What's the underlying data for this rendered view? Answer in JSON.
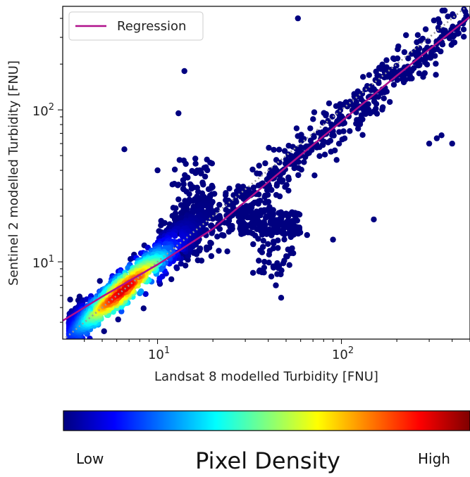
{
  "chart_data": {
    "type": "scatter",
    "title": "",
    "xlabel": "Landsat 8 modelled Turbidity [FNU]",
    "ylabel": "Sentinel 2 modelled Turbidity [FNU]",
    "xscale": "log",
    "yscale": "log",
    "xlim": [
      3.05,
      500
    ],
    "ylim": [
      3.1,
      480
    ],
    "x_ticks": [
      {
        "value": 10,
        "base": "10",
        "exp": "1"
      },
      {
        "value": 100,
        "base": "10",
        "exp": "2"
      }
    ],
    "y_ticks": [
      {
        "value": 10,
        "base": "10",
        "exp": "1"
      },
      {
        "value": 100,
        "base": "10",
        "exp": "2"
      }
    ],
    "grid": false,
    "legend": {
      "position": "top-left",
      "entries": [
        {
          "label": "Regression",
          "color": "#b0108c"
        }
      ]
    },
    "regression": {
      "name": "Regression",
      "color": "#b0108c",
      "points": [
        [
          3.05,
          4.1
        ],
        [
          5,
          5.9
        ],
        [
          10,
          9.6
        ],
        [
          20,
          16.5
        ],
        [
          50,
          42
        ],
        [
          100,
          84
        ],
        [
          200,
          168
        ],
        [
          500,
          410
        ]
      ]
    },
    "identity_line": {
      "style": "dotted",
      "color": "#999999"
    },
    "clusters": [
      {
        "name": "dense core",
        "x_range": [
          3.2,
          20
        ],
        "y_range": [
          3.4,
          22
        ],
        "density": "high"
      },
      {
        "name": "upper branch",
        "x_range": [
          20,
          480
        ],
        "y_range": [
          20,
          470
        ],
        "density": "low"
      },
      {
        "name": "mid horizontal band",
        "x_range": [
          28,
          60
        ],
        "y_range": [
          14,
          22
        ],
        "density": "low"
      },
      {
        "name": "upper vertical band",
        "x_range": [
          16,
          20
        ],
        "y_range": [
          25,
          50
        ],
        "density": "low"
      }
    ],
    "outliers": [
      [
        14,
        180
      ],
      [
        58,
        400
      ],
      [
        6.6,
        55
      ],
      [
        13,
        95
      ],
      [
        10,
        40
      ],
      [
        47,
        5.8
      ],
      [
        44,
        7
      ],
      [
        150,
        19
      ],
      [
        300,
        60
      ],
      [
        330,
        65
      ],
      [
        350,
        68
      ],
      [
        400,
        60
      ],
      [
        65,
        15
      ],
      [
        90,
        14
      ]
    ]
  },
  "colorbar": {
    "label": "Pixel Density",
    "low_label": "Low",
    "high_label": "High",
    "colors": [
      "#00007f",
      "#0000ff",
      "#007fff",
      "#00ffff",
      "#7fff7f",
      "#ffff00",
      "#ff7f00",
      "#ff0000",
      "#7f0000"
    ]
  }
}
